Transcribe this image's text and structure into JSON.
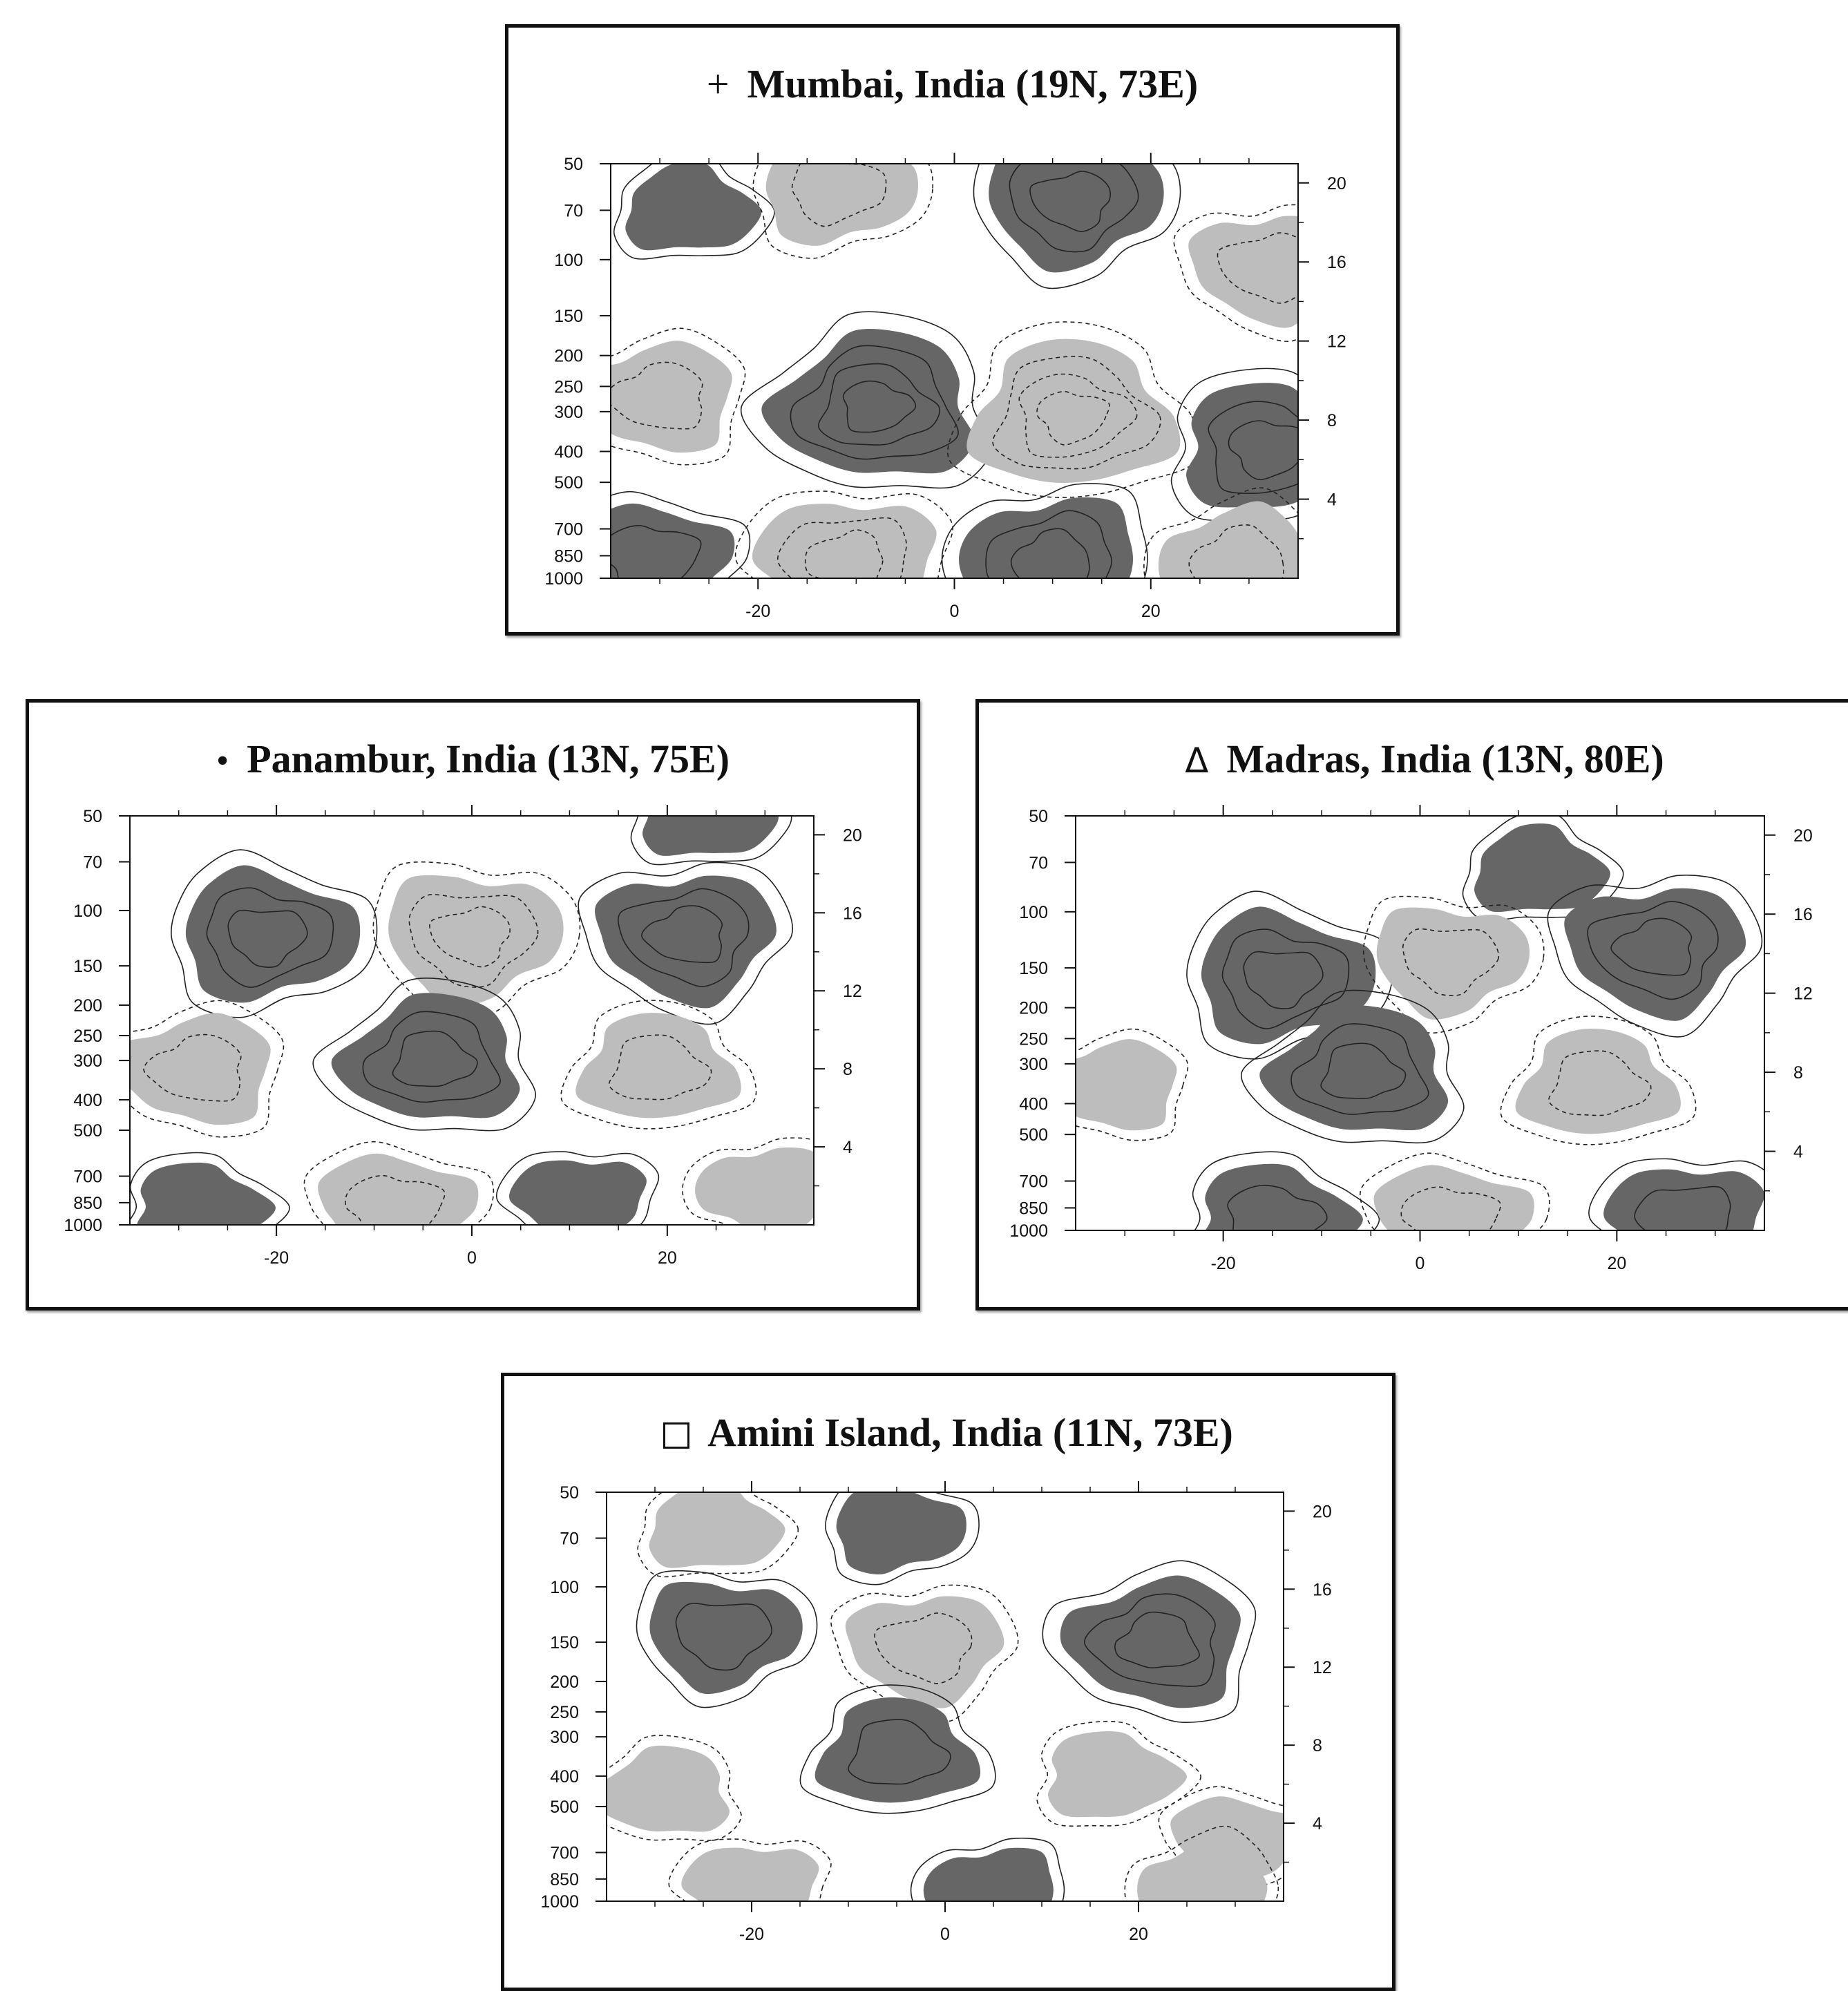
{
  "colors": {
    "dark_fill": "#666666",
    "light_fill": "#bdbdbd",
    "contour_line": "#222222",
    "frame": "#111111"
  },
  "panels": [
    {
      "marker": "+",
      "marker_type": "plus",
      "title": "Mumbai, India (19N, 73E)"
    },
    {
      "marker": "•",
      "marker_type": "dot",
      "title": "Panambur, India (13N, 75E)"
    },
    {
      "marker": "Δ",
      "marker_type": "triangle",
      "title": "Madras, India (13N, 80E)"
    },
    {
      "marker": "",
      "marker_type": "square",
      "title": "Amini Island, India (11N, 73E)"
    }
  ],
  "chart_data": [
    {
      "type": "contour",
      "title": "Mumbai, India (19N, 73E)",
      "xticks": [
        "-20",
        "0",
        "20"
      ],
      "xtick_values": [
        -20,
        0,
        20
      ],
      "xlim": [
        -35,
        35
      ],
      "yticks_left": [
        "50",
        "70",
        "100",
        "150",
        "200",
        "250",
        "300",
        "400",
        "500",
        "700",
        "850",
        "1000"
      ],
      "ytick_left_values": [
        50,
        70,
        100,
        150,
        200,
        250,
        300,
        400,
        500,
        700,
        850,
        1000
      ],
      "ylim_left": [
        1000,
        50
      ],
      "ylog": true,
      "yticks_right": [
        "4",
        "8",
        "12",
        "16",
        "20"
      ],
      "ytick_right_values": [
        4,
        8,
        12,
        16,
        20
      ],
      "features": [
        {
          "sign": "positive",
          "center_x": -27,
          "center_p": 70,
          "rank": 1
        },
        {
          "sign": "negative",
          "center_x": -12,
          "center_p": 60,
          "rank": 2
        },
        {
          "sign": "positive",
          "center_x": 12,
          "center_p": 65,
          "rank": 3
        },
        {
          "sign": "negative",
          "center_x": 32,
          "center_p": 105,
          "rank": 2
        },
        {
          "sign": "negative",
          "center_x": -30,
          "center_p": 270,
          "rank": 2
        },
        {
          "sign": "positive",
          "center_x": -8,
          "center_p": 290,
          "rank": 4
        },
        {
          "sign": "negative",
          "center_x": 12,
          "center_p": 310,
          "rank": 4
        },
        {
          "sign": "positive",
          "center_x": 32,
          "center_p": 390,
          "rank": 3
        },
        {
          "sign": "positive",
          "center_x": -31,
          "center_p": 860,
          "rank": 2
        },
        {
          "sign": "negative",
          "center_x": -11,
          "center_p": 880,
          "rank": 3
        },
        {
          "sign": "positive",
          "center_x": 10,
          "center_p": 880,
          "rank": 3
        },
        {
          "sign": "negative",
          "center_x": 29,
          "center_p": 890,
          "rank": 2
        }
      ]
    },
    {
      "type": "contour",
      "title": "Panambur, India (13N, 75E)",
      "xticks": [
        "-20",
        "0",
        "20"
      ],
      "xtick_values": [
        -20,
        0,
        20
      ],
      "xlim": [
        -35,
        35
      ],
      "yticks_left": [
        "50",
        "70",
        "100",
        "150",
        "200",
        "250",
        "300",
        "400",
        "500",
        "700",
        "850",
        "1000"
      ],
      "ytick_left_values": [
        50,
        70,
        100,
        150,
        200,
        250,
        300,
        400,
        500,
        700,
        850,
        1000
      ],
      "ylim_left": [
        1000,
        50
      ],
      "ylog": true,
      "yticks_right": [
        "4",
        "8",
        "12",
        "16",
        "20"
      ],
      "ytick_right_values": [
        4,
        8,
        12,
        16,
        20
      ],
      "features": [
        {
          "sign": "positive",
          "center_x": 24,
          "center_p": 50,
          "rank": 1
        },
        {
          "sign": "positive",
          "center_x": -21,
          "center_p": 120,
          "rank": 3
        },
        {
          "sign": "negative",
          "center_x": 0,
          "center_p": 120,
          "rank": 3
        },
        {
          "sign": "positive",
          "center_x": 22,
          "center_p": 120,
          "rank": 3
        },
        {
          "sign": "negative",
          "center_x": -28,
          "center_p": 320,
          "rank": 2
        },
        {
          "sign": "positive",
          "center_x": -4,
          "center_p": 300,
          "rank": 3
        },
        {
          "sign": "negative",
          "center_x": 19,
          "center_p": 320,
          "rank": 2
        },
        {
          "sign": "positive",
          "center_x": -28,
          "center_p": 880,
          "rank": 1
        },
        {
          "sign": "negative",
          "center_x": -8,
          "center_p": 880,
          "rank": 2
        },
        {
          "sign": "positive",
          "center_x": 11,
          "center_p": 830,
          "rank": 1
        },
        {
          "sign": "negative",
          "center_x": 30,
          "center_p": 780,
          "rank": 1
        }
      ]
    },
    {
      "type": "contour",
      "title": "Madras, India (13N, 80E)",
      "xticks": [
        "-20",
        "0",
        "20"
      ],
      "xtick_values": [
        -20,
        0,
        20
      ],
      "xlim": [
        -35,
        35
      ],
      "yticks_left": [
        "50",
        "70",
        "100",
        "150",
        "200",
        "250",
        "300",
        "400",
        "500",
        "700",
        "850",
        "1000"
      ],
      "ytick_left_values": [
        50,
        70,
        100,
        150,
        200,
        250,
        300,
        400,
        500,
        700,
        850,
        1000
      ],
      "ylim_left": [
        1000,
        50
      ],
      "ylog": true,
      "yticks_right": [
        "4",
        "8",
        "12",
        "16",
        "20"
      ],
      "ytick_right_values": [
        4,
        8,
        12,
        16,
        20
      ],
      "features": [
        {
          "sign": "positive",
          "center_x": 12,
          "center_p": 75,
          "rank": 1
        },
        {
          "sign": "positive",
          "center_x": -14,
          "center_p": 160,
          "rank": 3
        },
        {
          "sign": "negative",
          "center_x": 3,
          "center_p": 140,
          "rank": 2
        },
        {
          "sign": "positive",
          "center_x": 24,
          "center_p": 130,
          "rank": 3
        },
        {
          "sign": "negative",
          "center_x": -31,
          "center_p": 350,
          "rank": 1
        },
        {
          "sign": "positive",
          "center_x": -6,
          "center_p": 320,
          "rank": 3
        },
        {
          "sign": "negative",
          "center_x": 18,
          "center_p": 350,
          "rank": 2
        },
        {
          "sign": "positive",
          "center_x": -15,
          "center_p": 920,
          "rank": 2
        },
        {
          "sign": "negative",
          "center_x": 3,
          "center_p": 920,
          "rank": 2
        },
        {
          "sign": "positive",
          "center_x": 27,
          "center_p": 910,
          "rank": 2
        }
      ]
    },
    {
      "type": "contour",
      "title": "Amini Island, India (11N, 73E)",
      "xticks": [
        "-20",
        "0",
        "20"
      ],
      "xtick_values": [
        -20,
        0,
        20
      ],
      "xlim": [
        -35,
        35
      ],
      "yticks_left": [
        "50",
        "70",
        "100",
        "150",
        "200",
        "250",
        "300",
        "400",
        "500",
        "700",
        "850",
        "1000"
      ],
      "ytick_left_values": [
        50,
        70,
        100,
        150,
        200,
        250,
        300,
        400,
        500,
        700,
        850,
        1000
      ],
      "ylim_left": [
        1000,
        50
      ],
      "ylog": true,
      "yticks_right": [
        "4",
        "8",
        "12",
        "16",
        "20"
      ],
      "ytick_right_values": [
        4,
        8,
        12,
        16,
        20
      ],
      "features": [
        {
          "sign": "negative",
          "center_x": -24,
          "center_p": 65,
          "rank": 1
        },
        {
          "sign": "positive",
          "center_x": -5,
          "center_p": 65,
          "rank": 1
        },
        {
          "sign": "positive",
          "center_x": -23,
          "center_p": 140,
          "rank": 2
        },
        {
          "sign": "negative",
          "center_x": -2,
          "center_p": 155,
          "rank": 2
        },
        {
          "sign": "positive",
          "center_x": 22,
          "center_p": 150,
          "rank": 3
        },
        {
          "sign": "negative",
          "center_x": -29,
          "center_p": 450,
          "rank": 1
        },
        {
          "sign": "positive",
          "center_x": -5,
          "center_p": 340,
          "rank": 2
        },
        {
          "sign": "negative",
          "center_x": 17,
          "center_p": 400,
          "rank": 1
        },
        {
          "sign": "negative",
          "center_x": 30,
          "center_p": 640,
          "rank": 1
        },
        {
          "sign": "negative",
          "center_x": -20,
          "center_p": 900,
          "rank": 1
        },
        {
          "sign": "positive",
          "center_x": 5,
          "center_p": 930,
          "rank": 1
        },
        {
          "sign": "negative",
          "center_x": 27,
          "center_p": 900,
          "rank": 1
        }
      ]
    }
  ]
}
